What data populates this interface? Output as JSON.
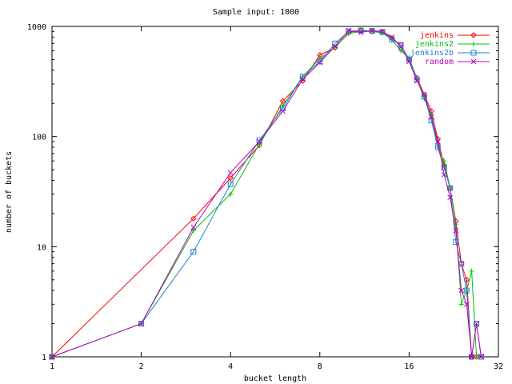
{
  "chart_data": {
    "type": "line",
    "title": "Sample input: 1000",
    "xlabel": "bucket length",
    "ylabel": "number of buckets",
    "x_scale": "log2",
    "y_scale": "log10",
    "xlim": [
      1,
      32
    ],
    "ylim": [
      1,
      1000
    ],
    "x_ticks": [
      1,
      2,
      4,
      8,
      16,
      32
    ],
    "x_tick_labels": [
      "1",
      "2",
      "4",
      "8",
      "16",
      "32"
    ],
    "y_ticks": [
      1,
      10,
      100,
      1000
    ],
    "y_tick_labels": [
      "1",
      "10",
      "100",
      "1000"
    ],
    "grid": false,
    "legend_position": "top-right",
    "series": [
      {
        "name": "jenkins",
        "color": "#ff0000",
        "marker": "diamond",
        "points": [
          [
            1,
            1
          ],
          [
            3,
            18
          ],
          [
            4,
            42
          ],
          [
            5,
            83
          ],
          [
            6,
            210
          ],
          [
            7,
            320
          ],
          [
            8,
            550
          ],
          [
            9,
            640
          ],
          [
            10,
            880
          ],
          [
            11,
            920
          ],
          [
            12,
            900
          ],
          [
            13,
            890
          ],
          [
            14,
            780
          ],
          [
            15,
            680
          ],
          [
            16,
            500
          ],
          [
            17,
            340
          ],
          [
            18,
            240
          ],
          [
            19,
            170
          ],
          [
            20,
            95
          ],
          [
            21,
            55
          ],
          [
            22,
            34
          ],
          [
            23,
            17
          ],
          [
            24,
            7
          ],
          [
            25,
            5
          ],
          [
            26,
            1
          ],
          [
            27,
            1
          ]
        ]
      },
      {
        "name": "jenkins2",
        "color": "#00c000",
        "marker": "plus",
        "points": [
          [
            1,
            1
          ],
          [
            2,
            2
          ],
          [
            3,
            14
          ],
          [
            4,
            30
          ],
          [
            5,
            85
          ],
          [
            6,
            190
          ],
          [
            7,
            350
          ],
          [
            8,
            510
          ],
          [
            9,
            650
          ],
          [
            10,
            860
          ],
          [
            11,
            900
          ],
          [
            12,
            900
          ],
          [
            13,
            870
          ],
          [
            14,
            760
          ],
          [
            15,
            600
          ],
          [
            16,
            520
          ],
          [
            17,
            330
          ],
          [
            18,
            220
          ],
          [
            19,
            160
          ],
          [
            20,
            80
          ],
          [
            21,
            60
          ],
          [
            22,
            34
          ],
          [
            23,
            16
          ],
          [
            24,
            3
          ],
          [
            25,
            4
          ],
          [
            26,
            6
          ],
          [
            27,
            1
          ]
        ]
      },
      {
        "name": "jenkins2b",
        "color": "#2080d0",
        "marker": "square",
        "points": [
          [
            1,
            1
          ],
          [
            2,
            2
          ],
          [
            3,
            9
          ],
          [
            4,
            37
          ],
          [
            5,
            92
          ],
          [
            6,
            180
          ],
          [
            7,
            350
          ],
          [
            8,
            480
          ],
          [
            9,
            700
          ],
          [
            10,
            900
          ],
          [
            11,
            920
          ],
          [
            12,
            910
          ],
          [
            13,
            890
          ],
          [
            14,
            760
          ],
          [
            15,
            680
          ],
          [
            16,
            500
          ],
          [
            17,
            330
          ],
          [
            18,
            230
          ],
          [
            19,
            140
          ],
          [
            20,
            80
          ],
          [
            21,
            52
          ],
          [
            22,
            34
          ],
          [
            23,
            11
          ],
          [
            24,
            7
          ],
          [
            25,
            4
          ],
          [
            26,
            1
          ],
          [
            27,
            2
          ],
          [
            28,
            1
          ]
        ]
      },
      {
        "name": "random",
        "color": "#c000c0",
        "marker": "cross",
        "points": [
          [
            1,
            1
          ],
          [
            2,
            2
          ],
          [
            3,
            15
          ],
          [
            4,
            47
          ],
          [
            5,
            90
          ],
          [
            6,
            170
          ],
          [
            7,
            330
          ],
          [
            8,
            470
          ],
          [
            9,
            660
          ],
          [
            10,
            920
          ],
          [
            11,
            880
          ],
          [
            12,
            920
          ],
          [
            13,
            900
          ],
          [
            14,
            800
          ],
          [
            15,
            650
          ],
          [
            16,
            480
          ],
          [
            17,
            320
          ],
          [
            18,
            240
          ],
          [
            19,
            150
          ],
          [
            20,
            90
          ],
          [
            21,
            45
          ],
          [
            22,
            28
          ],
          [
            23,
            14
          ],
          [
            24,
            4
          ],
          [
            25,
            3
          ],
          [
            26,
            1
          ],
          [
            27,
            2
          ],
          [
            28,
            1
          ]
        ]
      }
    ]
  }
}
